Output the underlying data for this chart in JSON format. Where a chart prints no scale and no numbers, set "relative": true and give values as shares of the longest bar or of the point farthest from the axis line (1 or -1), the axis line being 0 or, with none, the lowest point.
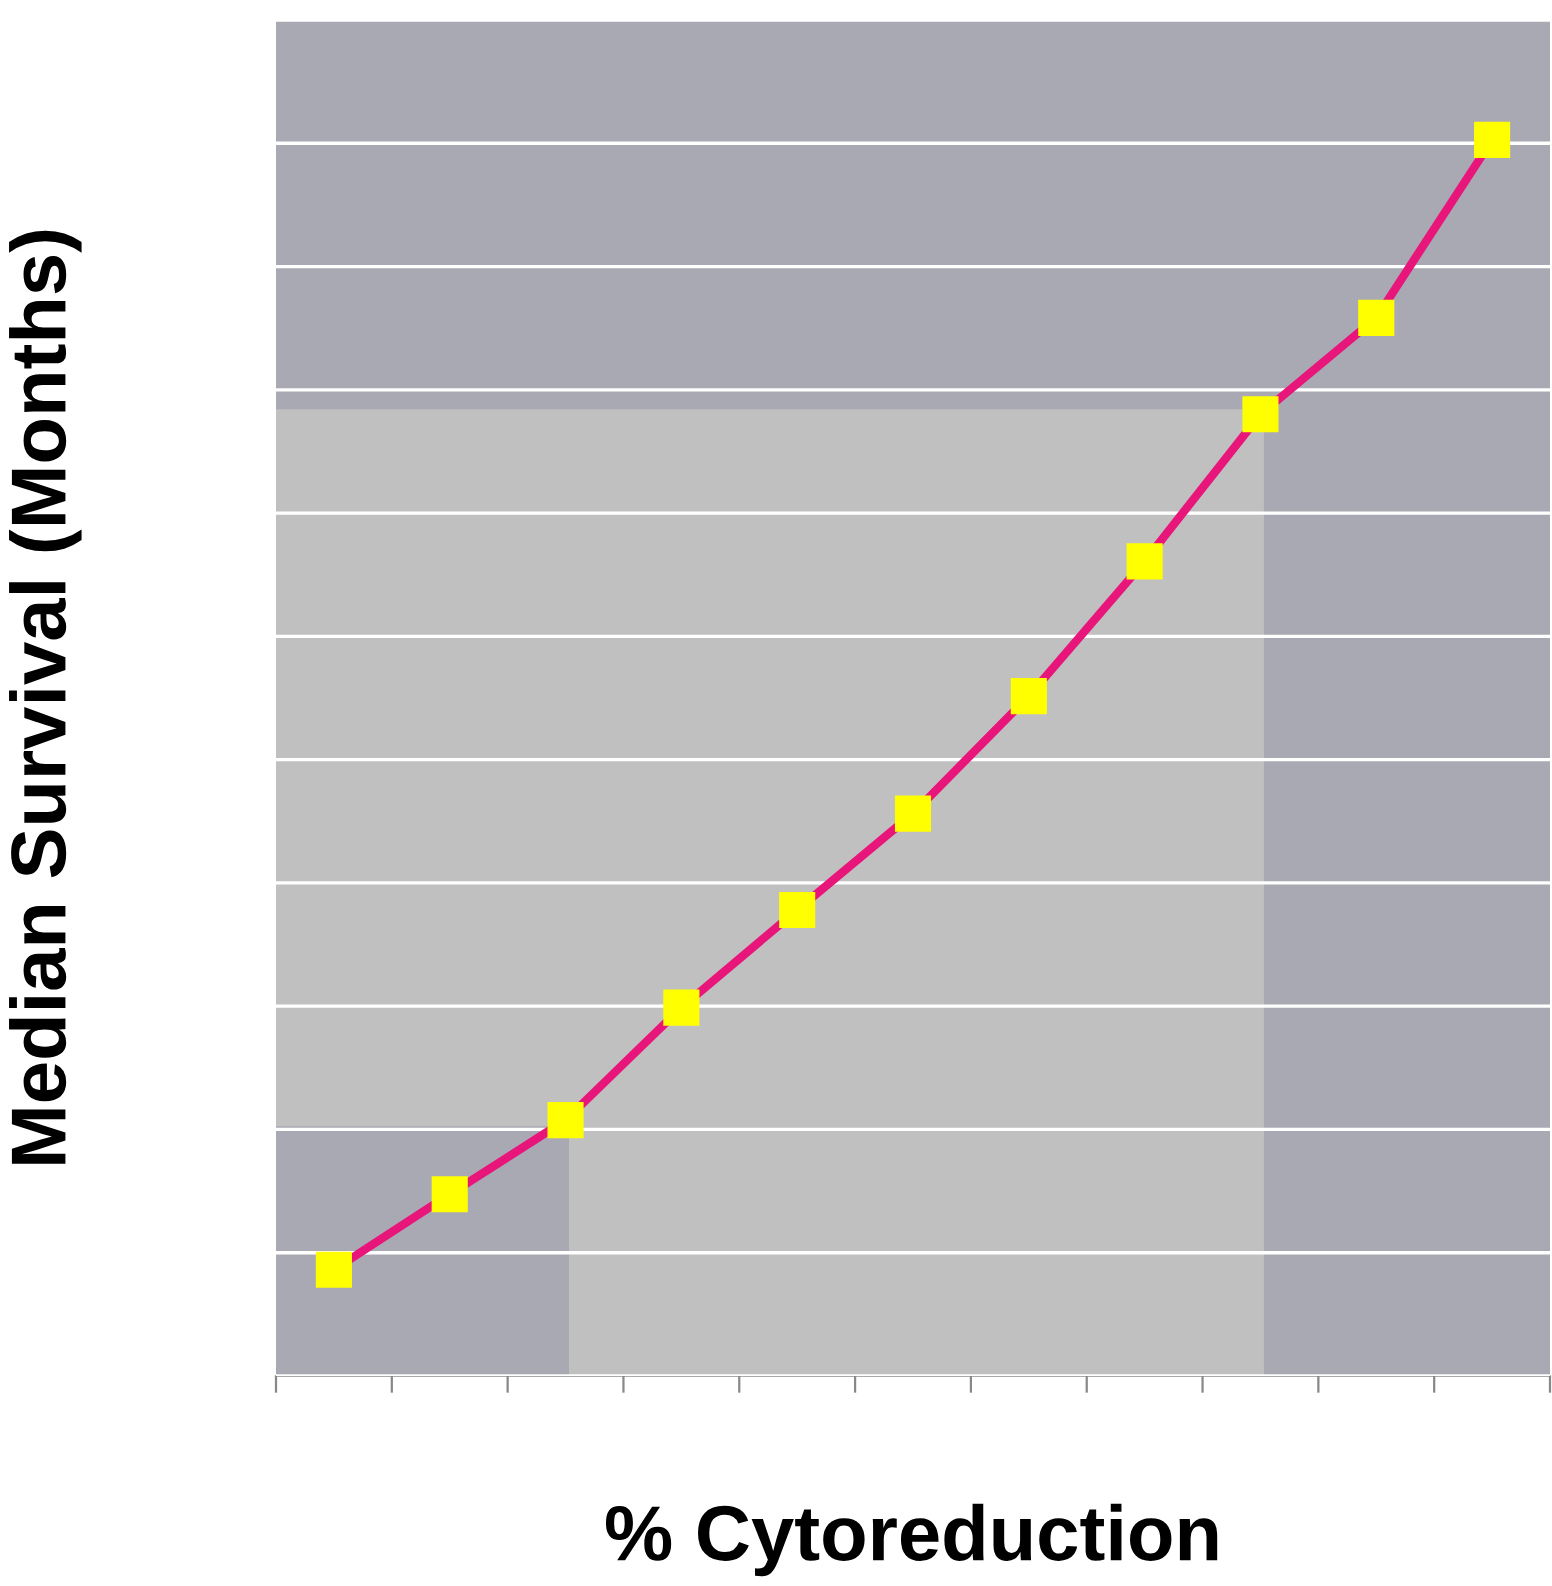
{
  "chart_data": {
    "type": "line",
    "relative": true,
    "xlabel": "% Cytoreduction",
    "ylabel": "Median Survival (Months)",
    "categories": [
      null,
      null,
      null,
      null,
      null,
      null,
      null,
      null,
      null,
      null,
      null
    ],
    "series": [
      {
        "color": "#e8157a",
        "values": [
          0.086,
          0.147,
          0.207,
          0.298,
          0.377,
          0.455,
          0.55,
          0.659,
          0.778,
          0.856,
          1
        ]
      }
    ],
    "marker": "square",
    "line_style": "solid",
    "grid": "y",
    "legend": false,
    "bands": [
      {
        "axis": "y",
        "from": 0.782,
        "to": 1.097,
        "color": "#a9a9b3"
      }
    ]
  }
}
